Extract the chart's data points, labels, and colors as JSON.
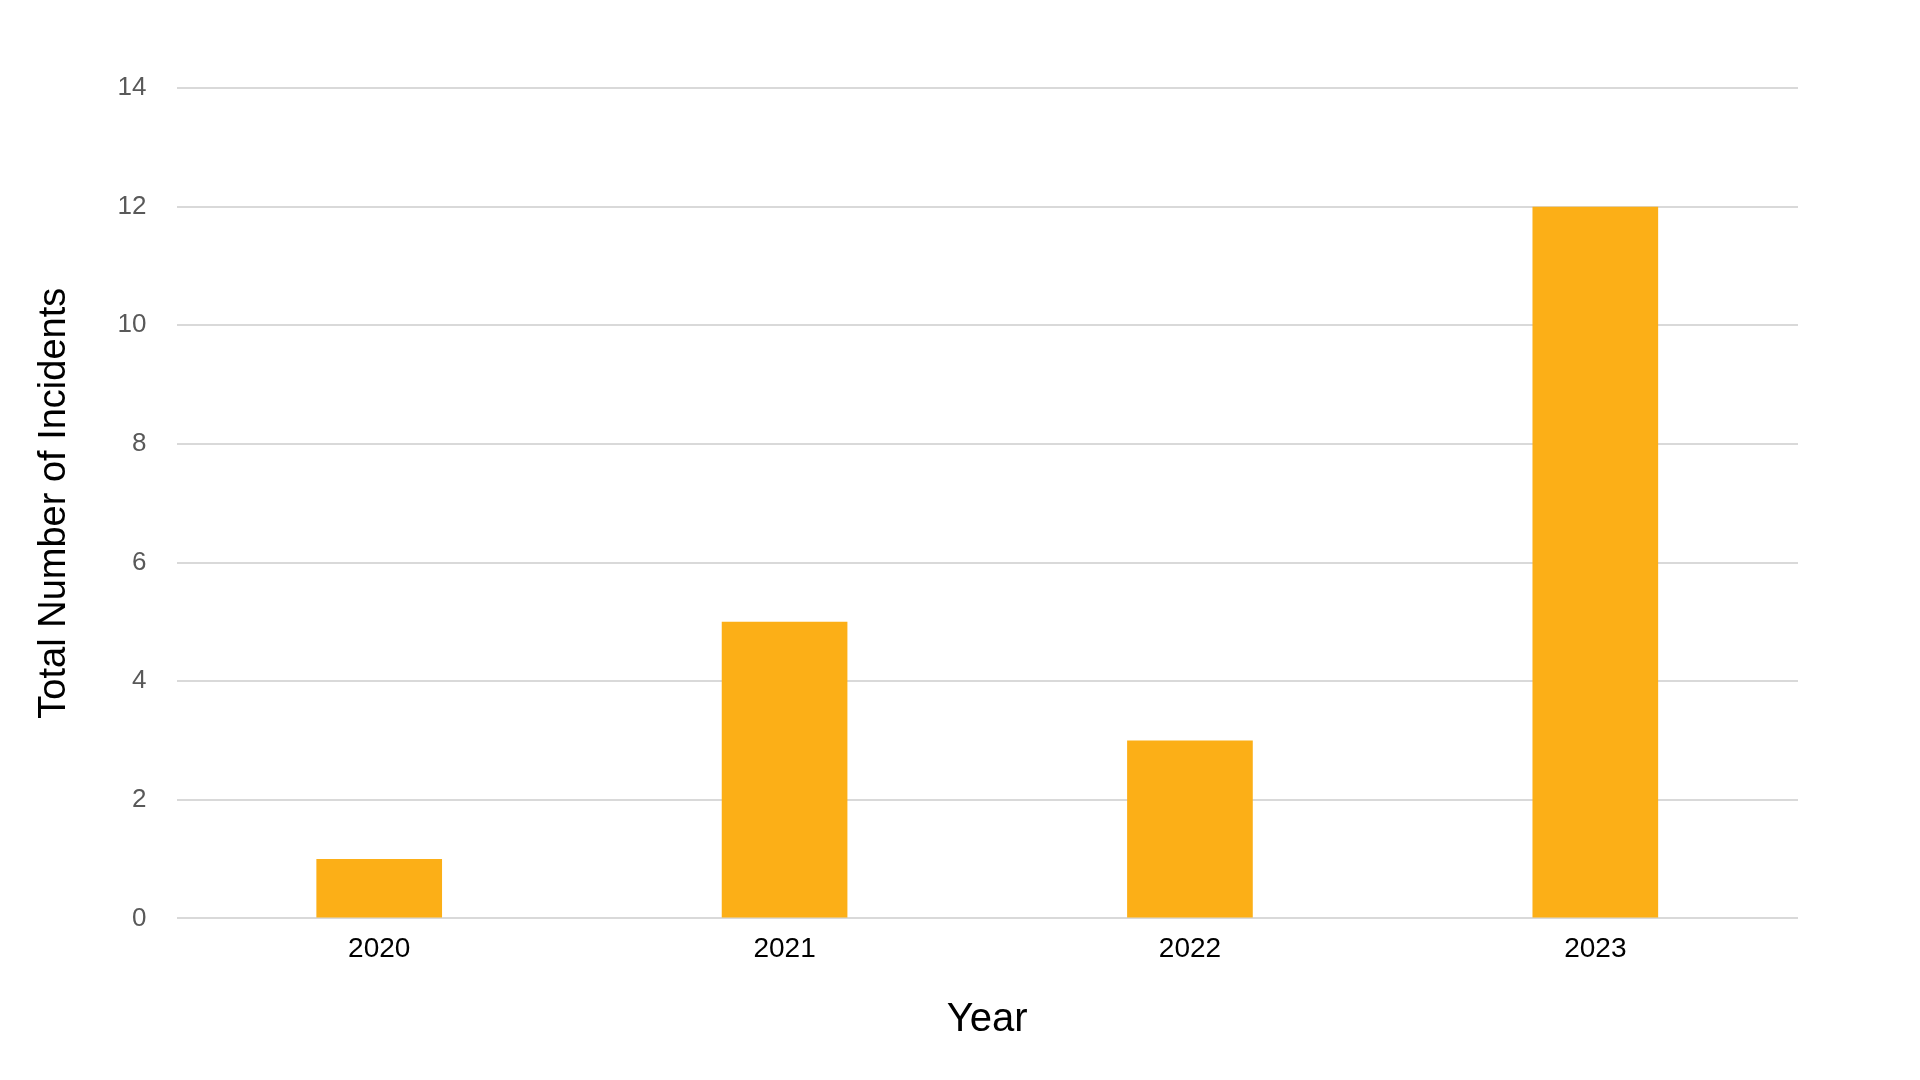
{
  "chart_data": {
    "type": "bar",
    "xlabel": "Year",
    "ylabel": "Total Number of Incidents",
    "categories": [
      "2020",
      "2021",
      "2022",
      "2023"
    ],
    "values": [
      1,
      5,
      3,
      12
    ],
    "color": "#fcaf17",
    "ylim": [
      0,
      14
    ],
    "yticks": [
      0,
      2,
      4,
      6,
      8,
      10,
      12,
      14
    ],
    "grid": "y",
    "legend": false
  }
}
